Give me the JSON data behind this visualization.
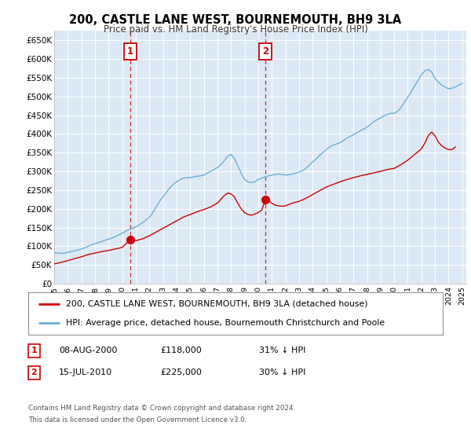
{
  "title": "200, CASTLE LANE WEST, BOURNEMOUTH, BH9 3LA",
  "subtitle": "Price paid vs. HM Land Registry's House Price Index (HPI)",
  "background_color": "#ffffff",
  "plot_bg_color": "#dce9f5",
  "grid_color": "#ffffff",
  "ylabel_ticks": [
    "£0",
    "£50K",
    "£100K",
    "£150K",
    "£200K",
    "£250K",
    "£300K",
    "£350K",
    "£400K",
    "£450K",
    "£500K",
    "£550K",
    "£600K",
    "£650K"
  ],
  "ytick_values": [
    0,
    50000,
    100000,
    150000,
    200000,
    250000,
    300000,
    350000,
    400000,
    450000,
    500000,
    550000,
    600000,
    650000
  ],
  "hpi_color": "#6baed6",
  "price_color": "#cc0000",
  "marker1_year": 2000.6,
  "marker1_value": 118000,
  "marker2_year": 2010.54,
  "marker2_value": 225000,
  "legend_line1": "200, CASTLE LANE WEST, BOURNEMOUTH, BH9 3LA (detached house)",
  "legend_line2": "HPI: Average price, detached house, Bournemouth Christchurch and Poole",
  "footnote1": "Contains HM Land Registry data © Crown copyright and database right 2024.",
  "footnote2": "This data is licensed under the Open Government Licence v3.0.",
  "xmin": 1995.0,
  "xmax": 2025.3,
  "ymin": 0,
  "ymax": 675000,
  "hpi_years": [
    1995.0,
    1995.25,
    1995.5,
    1995.75,
    1996.0,
    1996.25,
    1996.5,
    1996.75,
    1997.0,
    1997.25,
    1997.5,
    1997.75,
    1998.0,
    1998.25,
    1998.5,
    1998.75,
    1999.0,
    1999.25,
    1999.5,
    1999.75,
    2000.0,
    2000.25,
    2000.5,
    2000.75,
    2001.0,
    2001.25,
    2001.5,
    2001.75,
    2002.0,
    2002.25,
    2002.5,
    2002.75,
    2003.0,
    2003.25,
    2003.5,
    2003.75,
    2004.0,
    2004.25,
    2004.5,
    2004.75,
    2005.0,
    2005.25,
    2005.5,
    2005.75,
    2006.0,
    2006.25,
    2006.5,
    2006.75,
    2007.0,
    2007.25,
    2007.5,
    2007.75,
    2008.0,
    2008.25,
    2008.5,
    2008.75,
    2009.0,
    2009.25,
    2009.5,
    2009.75,
    2010.0,
    2010.25,
    2010.5,
    2010.75,
    2011.0,
    2011.25,
    2011.5,
    2011.75,
    2012.0,
    2012.25,
    2012.5,
    2012.75,
    2013.0,
    2013.25,
    2013.5,
    2013.75,
    2014.0,
    2014.25,
    2014.5,
    2014.75,
    2015.0,
    2015.25,
    2015.5,
    2015.75,
    2016.0,
    2016.25,
    2016.5,
    2016.75,
    2017.0,
    2017.25,
    2017.5,
    2017.75,
    2018.0,
    2018.25,
    2018.5,
    2018.75,
    2019.0,
    2019.25,
    2019.5,
    2019.75,
    2020.0,
    2020.25,
    2020.5,
    2020.75,
    2021.0,
    2021.25,
    2021.5,
    2021.75,
    2022.0,
    2022.25,
    2022.5,
    2022.75,
    2023.0,
    2023.25,
    2023.5,
    2023.75,
    2024.0,
    2024.25,
    2024.5,
    2024.75,
    2025.0
  ],
  "hpi_values": [
    83000,
    82000,
    81000,
    82000,
    84000,
    86000,
    88000,
    90000,
    93000,
    96000,
    100000,
    104000,
    107000,
    110000,
    113000,
    116000,
    119000,
    122000,
    126000,
    131000,
    135000,
    140000,
    145000,
    148000,
    152000,
    157000,
    163000,
    170000,
    178000,
    190000,
    205000,
    220000,
    232000,
    244000,
    256000,
    265000,
    272000,
    278000,
    282000,
    283000,
    283000,
    285000,
    287000,
    288000,
    290000,
    295000,
    300000,
    305000,
    310000,
    318000,
    328000,
    340000,
    345000,
    335000,
    315000,
    295000,
    278000,
    272000,
    270000,
    272000,
    278000,
    282000,
    285000,
    288000,
    290000,
    292000,
    293000,
    292000,
    290000,
    291000,
    293000,
    295000,
    298000,
    302000,
    308000,
    316000,
    325000,
    333000,
    342000,
    350000,
    358000,
    365000,
    370000,
    373000,
    376000,
    382000,
    388000,
    393000,
    398000,
    403000,
    408000,
    413000,
    418000,
    425000,
    432000,
    438000,
    443000,
    448000,
    452000,
    455000,
    455000,
    460000,
    470000,
    485000,
    498000,
    512000,
    528000,
    543000,
    558000,
    568000,
    572000,
    565000,
    548000,
    538000,
    530000,
    525000,
    520000,
    522000,
    525000,
    530000,
    535000
  ],
  "price_years": [
    1995.0,
    1995.5,
    1996.0,
    1996.5,
    1997.0,
    1997.5,
    1998.0,
    1998.5,
    1999.0,
    1999.5,
    2000.0,
    2000.6,
    2001.0,
    2001.5,
    2002.0,
    2002.5,
    2003.0,
    2003.5,
    2004.0,
    2004.5,
    2005.0,
    2005.5,
    2006.0,
    2006.5,
    2007.0,
    2007.5,
    2007.75,
    2008.0,
    2008.25,
    2008.5,
    2008.75,
    2009.0,
    2009.25,
    2009.5,
    2009.75,
    2010.0,
    2010.25,
    2010.54,
    2010.75,
    2011.0,
    2011.25,
    2011.5,
    2011.75,
    2012.0,
    2012.5,
    2013.0,
    2013.5,
    2014.0,
    2014.5,
    2015.0,
    2015.5,
    2016.0,
    2016.5,
    2017.0,
    2017.5,
    2018.0,
    2018.5,
    2019.0,
    2019.5,
    2020.0,
    2020.5,
    2021.0,
    2021.5,
    2022.0,
    2022.25,
    2022.5,
    2022.75,
    2023.0,
    2023.25,
    2023.5,
    2023.75,
    2024.0,
    2024.25,
    2024.5
  ],
  "price_values": [
    53000,
    57000,
    62000,
    67000,
    72000,
    78000,
    82000,
    86000,
    89000,
    93000,
    97000,
    118000,
    115000,
    120000,
    128000,
    138000,
    148000,
    158000,
    168000,
    178000,
    185000,
    192000,
    198000,
    205000,
    215000,
    235000,
    242000,
    240000,
    232000,
    215000,
    200000,
    190000,
    185000,
    183000,
    186000,
    190000,
    196000,
    225000,
    222000,
    215000,
    210000,
    208000,
    207000,
    208000,
    215000,
    220000,
    228000,
    238000,
    248000,
    258000,
    265000,
    272000,
    278000,
    283000,
    288000,
    292000,
    296000,
    300000,
    305000,
    308000,
    318000,
    330000,
    345000,
    360000,
    375000,
    395000,
    405000,
    395000,
    378000,
    368000,
    362000,
    358000,
    358000,
    365000
  ]
}
